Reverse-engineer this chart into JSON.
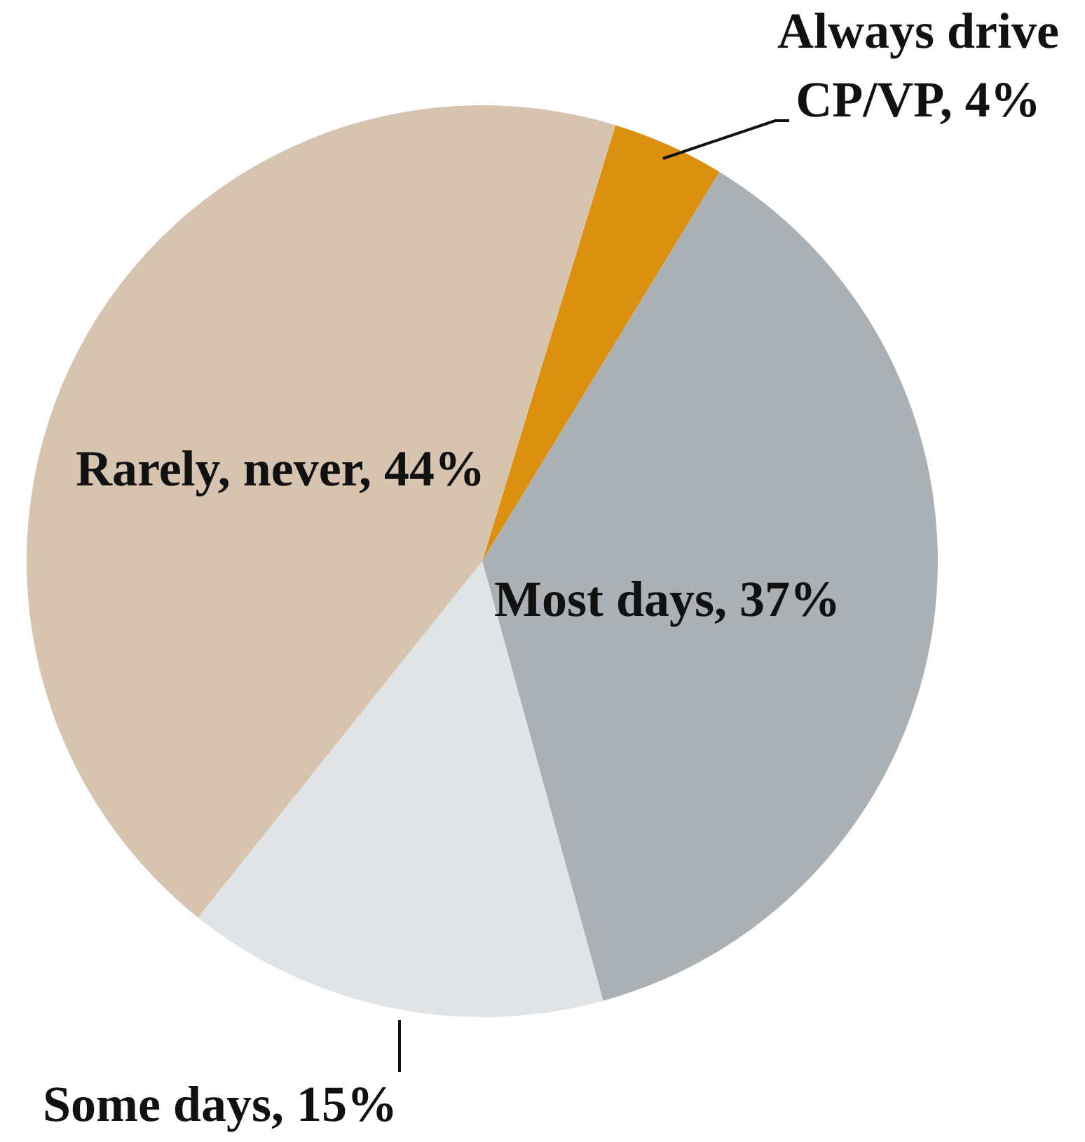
{
  "chart_data": {
    "type": "pie",
    "categories": [
      "Always drive CP/VP",
      "Most days",
      "Some days",
      "Rarely, never"
    ],
    "values": [
      4,
      37,
      15,
      44
    ],
    "colors": [
      "#dc9010",
      "#aab0b3",
      "#e1e4e6",
      "#d6c4b1"
    ],
    "value_labels": [
      "4%",
      "37%",
      "15%",
      "44%"
    ]
  }
}
